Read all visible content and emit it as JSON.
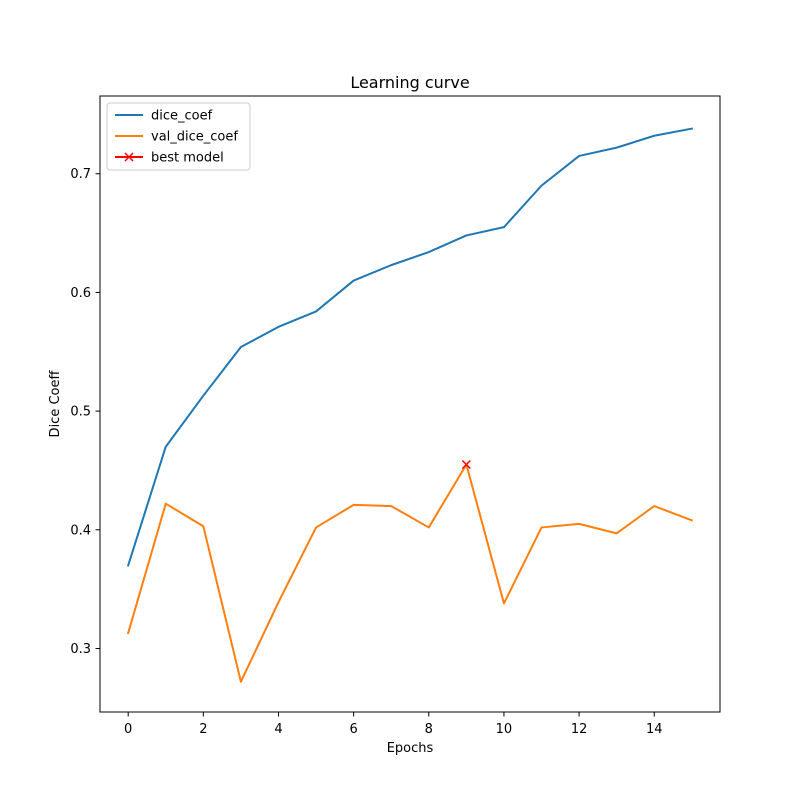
{
  "chart_data": {
    "type": "line",
    "title": "Learning curve",
    "xlabel": "Epochs",
    "ylabel": "Dice Coeff",
    "xlim": [
      -0.75,
      15.75
    ],
    "ylim": [
      0.2465,
      0.7655
    ],
    "x_ticks": [
      0,
      2,
      4,
      6,
      8,
      10,
      12,
      14
    ],
    "y_ticks": [
      0.3,
      0.4,
      0.5,
      0.6,
      0.7
    ],
    "x_tick_labels": [
      "0",
      "2",
      "4",
      "6",
      "8",
      "10",
      "12",
      "14"
    ],
    "y_tick_labels": [
      "0.3",
      "0.4",
      "0.5",
      "0.6",
      "0.7"
    ],
    "grid": false,
    "legend_position": "top-left",
    "x": [
      0,
      1,
      2,
      3,
      4,
      5,
      6,
      7,
      8,
      9,
      10,
      11,
      12,
      13,
      14,
      15
    ],
    "series": [
      {
        "name": "dice_coef",
        "color": "#1f77b4",
        "values": [
          0.37,
          0.47,
          0.513,
          0.554,
          0.571,
          0.584,
          0.61,
          0.623,
          0.634,
          0.648,
          0.655,
          0.69,
          0.715,
          0.722,
          0.732,
          0.738
        ]
      },
      {
        "name": "val_dice_coef",
        "color": "#ff7f0e",
        "values": [
          0.313,
          0.422,
          0.403,
          0.272,
          0.339,
          0.402,
          0.421,
          0.42,
          0.402,
          0.455,
          0.338,
          0.402,
          0.405,
          0.397,
          0.42,
          0.408
        ]
      }
    ],
    "markers": [
      {
        "name": "best model",
        "color": "#ff0000",
        "marker": "x",
        "x": 9,
        "y": 0.455
      }
    ]
  }
}
